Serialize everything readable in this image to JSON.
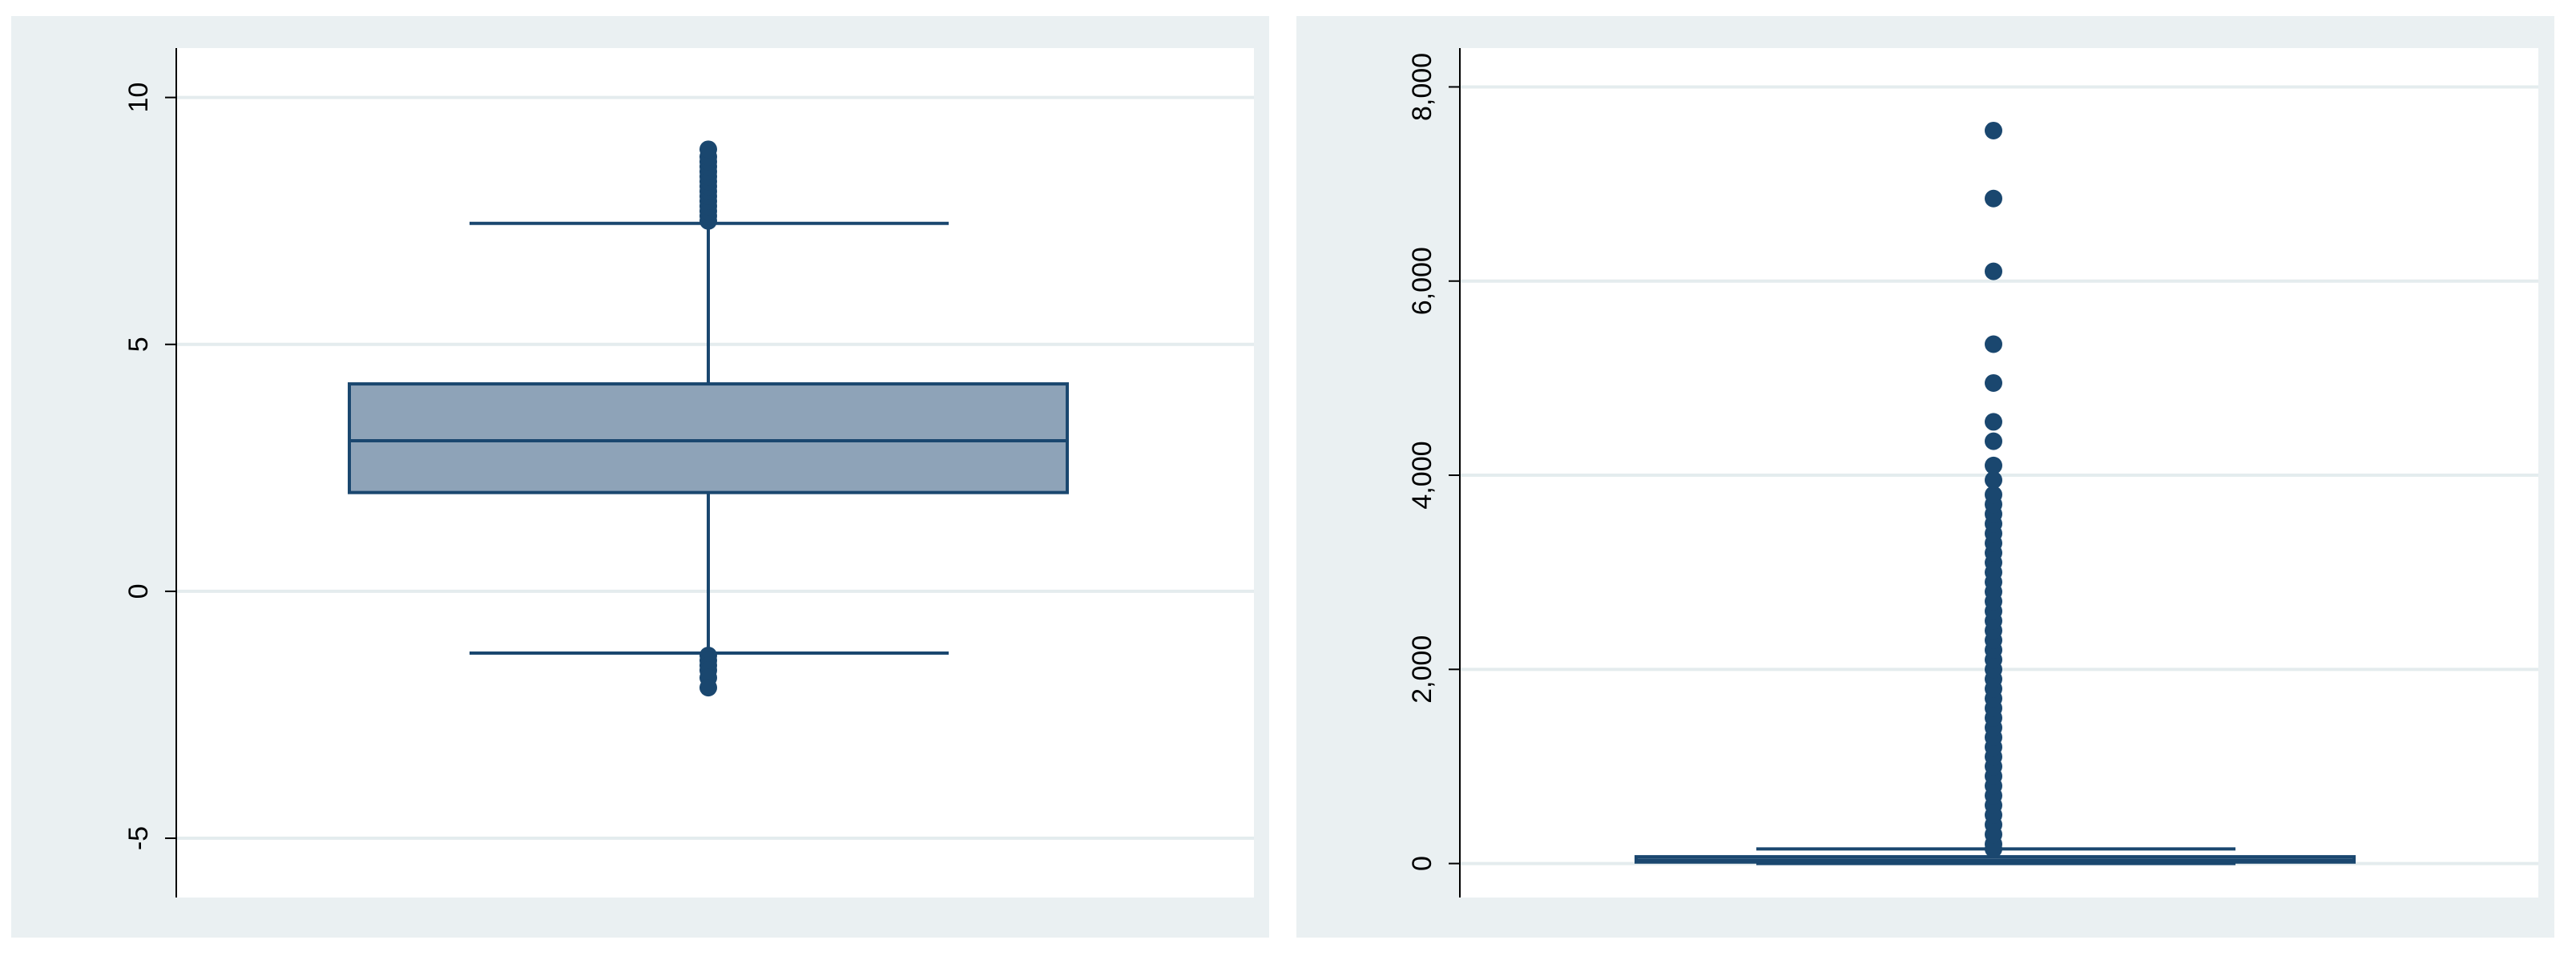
{
  "colors": {
    "panel_bg": "#eaf0f2",
    "plot_bg": "#ffffff",
    "grid": "#e4ecee",
    "box_fill": "#8ea3b8",
    "ink": "#1a476f",
    "axis": "#000000"
  },
  "chart_data": [
    {
      "type": "box",
      "ylim": [
        -6.2,
        11
      ],
      "yticks": [
        -5,
        0,
        5,
        10
      ],
      "ytick_labels": [
        "-5",
        "0",
        "5",
        "10"
      ],
      "grid": true,
      "box": {
        "lower_whisker": -1.25,
        "q1": 2.0,
        "median": 3.05,
        "q3": 4.2,
        "upper_whisker": 7.45
      },
      "outliers": [
        -1.3,
        -1.4,
        -1.5,
        -1.6,
        -1.75,
        -1.95,
        7.5,
        7.6,
        7.7,
        7.8,
        7.9,
        8.0,
        8.1,
        8.2,
        8.3,
        8.4,
        8.5,
        8.6,
        8.7,
        8.8,
        8.95
      ]
    },
    {
      "type": "box",
      "ylim": [
        -350,
        8400
      ],
      "yticks": [
        0,
        2000,
        4000,
        6000,
        8000
      ],
      "ytick_labels": [
        "0",
        "2,000",
        "4,000",
        "6,000",
        "8,000"
      ],
      "grid": true,
      "box": {
        "lower_whisker": 0,
        "q1": 15,
        "median": 35,
        "q3": 70,
        "upper_whisker": 150
      },
      "outliers": [
        150,
        200,
        300,
        400,
        500,
        600,
        700,
        800,
        900,
        1000,
        1100,
        1200,
        1300,
        1400,
        1500,
        1600,
        1700,
        1800,
        1900,
        2000,
        2100,
        2200,
        2300,
        2400,
        2500,
        2600,
        2700,
        2800,
        2900,
        3000,
        3100,
        3200,
        3300,
        3400,
        3500,
        3600,
        3700,
        3800,
        3950,
        4100,
        4350,
        4550,
        4950,
        5350,
        6100,
        6850,
        7550
      ]
    }
  ]
}
